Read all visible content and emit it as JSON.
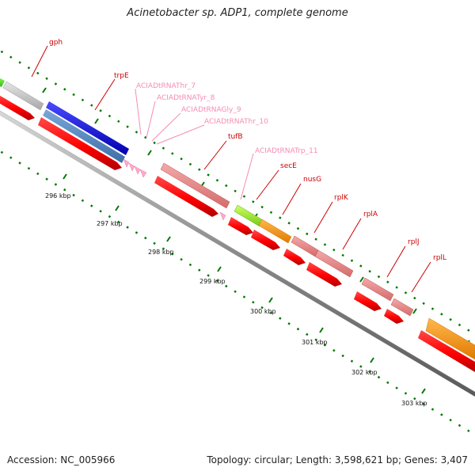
{
  "title": "Acinetobacter sp. ADP1, complete genome",
  "footer": {
    "accession": "Accession: NC_005966",
    "info": "Topology: circular; Length: 3,598,621 bp; Genes: 3,407"
  },
  "genes": [
    {
      "name": "gph",
      "color": "#cc0000"
    },
    {
      "name": "trpE",
      "color": "#cc0000"
    },
    {
      "name": "ACIADtRNAThr_7",
      "color": "#f58cb4"
    },
    {
      "name": "ACIADtRNATyr_8",
      "color": "#f58cb4"
    },
    {
      "name": "ACIADtRNAGly_9",
      "color": "#f58cb4"
    },
    {
      "name": "ACIADtRNAThr_10",
      "color": "#f58cb4"
    },
    {
      "name": "tufB",
      "color": "#cc0000"
    },
    {
      "name": "ACIADtRNATrp_11",
      "color": "#f58cb4"
    },
    {
      "name": "secE",
      "color": "#cc0000"
    },
    {
      "name": "nusG",
      "color": "#cc0000"
    },
    {
      "name": "rplK",
      "color": "#cc0000"
    },
    {
      "name": "rplA",
      "color": "#cc0000"
    },
    {
      "name": "rplJ",
      "color": "#cc0000"
    },
    {
      "name": "rplL",
      "color": "#cc0000"
    }
  ],
  "kbp_labels": [
    "296 kbp",
    "297 kbp",
    "298 kbp",
    "299 kbp",
    "300 kbp",
    "301 kbp",
    "302 kbp",
    "303 kbp"
  ],
  "colors": {
    "cds": "#ff0000",
    "trna": "#ffaacc",
    "backbone": "#888888",
    "ticks": "#007700",
    "label_line": "#cc0000",
    "label_line_trna": "#f58cb4"
  }
}
